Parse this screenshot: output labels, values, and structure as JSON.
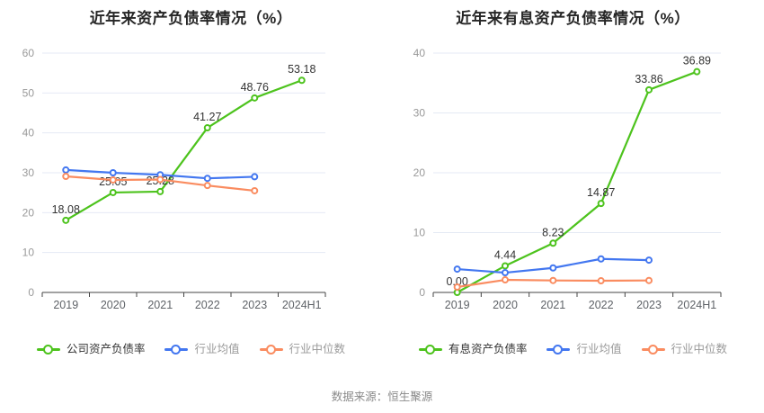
{
  "source_note": "数据来源：恒生聚源",
  "colors": {
    "company": "#4dc31d",
    "industry_avg": "#4377f0",
    "industry_median": "#fa8c60",
    "grid": "#e4eaf4",
    "axis": "#444444",
    "y_tick_label": "#999999",
    "x_tick_label": "#5f6368",
    "value_label": "#333333",
    "title": "#262626",
    "legend_active_text": "#333333",
    "legend_muted_text": "#999999"
  },
  "chart_data": [
    {
      "type": "line",
      "title": "近年来资产负债率情况（%）",
      "xlabel": "",
      "ylabel": "",
      "ylim": [
        0,
        60
      ],
      "ytick_step": 10,
      "grid": true,
      "legend_position": "bottom",
      "categories": [
        "2019",
        "2020",
        "2021",
        "2022",
        "2023",
        "2024H1"
      ],
      "series": [
        {
          "name": "公司资产负债率",
          "color": "#4dc31d",
          "values": [
            18.08,
            25.05,
            25.28,
            41.27,
            48.76,
            53.18
          ],
          "point_labels": [
            "18.08",
            "25.05",
            "25.28",
            "41.27",
            "48.76",
            "53.18"
          ]
        },
        {
          "name": "行业均值",
          "color": "#4377f0",
          "values": [
            30.7,
            30.0,
            29.5,
            28.6,
            29.0,
            null
          ],
          "point_labels": null
        },
        {
          "name": "行业中位数",
          "color": "#fa8c60",
          "values": [
            29.1,
            28.2,
            28.3,
            26.8,
            25.5,
            null
          ],
          "point_labels": null
        }
      ]
    },
    {
      "type": "line",
      "title": "近年来有息资产负债率情况（%）",
      "xlabel": "",
      "ylabel": "",
      "ylim": [
        0,
        40
      ],
      "ytick_step": 10,
      "grid": true,
      "legend_position": "bottom",
      "categories": [
        "2019",
        "2020",
        "2021",
        "2022",
        "2023",
        "2024H1"
      ],
      "series": [
        {
          "name": "有息资产负债率",
          "color": "#4dc31d",
          "values": [
            0.0,
            4.44,
            8.23,
            14.87,
            33.86,
            36.89
          ],
          "point_labels": [
            "0.00",
            "4.44",
            "8.23",
            "14.87",
            "33.86",
            "36.89"
          ]
        },
        {
          "name": "行业均值",
          "color": "#4377f0",
          "values": [
            3.9,
            3.3,
            4.1,
            5.6,
            5.4,
            null
          ],
          "point_labels": null
        },
        {
          "name": "行业中位数",
          "color": "#fa8c60",
          "values": [
            0.9,
            2.1,
            2.0,
            1.95,
            2.0,
            null
          ],
          "point_labels": null
        }
      ]
    }
  ]
}
